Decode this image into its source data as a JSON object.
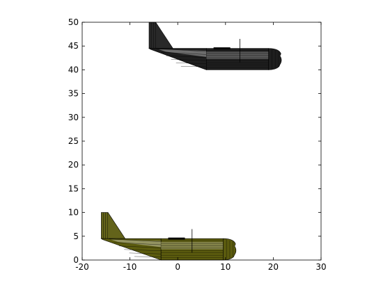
{
  "chart_data": {
    "type": "other",
    "title": "",
    "xlabel": "",
    "ylabel": "",
    "xlim": [
      -20,
      30
    ],
    "ylim": [
      0,
      50
    ],
    "x_ticks": [
      -20,
      -10,
      0,
      10,
      20,
      30
    ],
    "y_ticks": [
      0,
      5,
      10,
      15,
      20,
      25,
      30,
      35,
      40,
      45,
      50
    ],
    "grid": false,
    "legend": "none",
    "box": true,
    "objects": [
      {
        "kind": "aircraft-side-view",
        "color": "#1e1e1e",
        "tail_x": -6,
        "nose_x": 22,
        "fuselage_bottom_y": 40,
        "fuselage_top_y": 44.5,
        "fin_top_y": 50,
        "cylinder_start_x": 6,
        "cylinder_end_x": 19,
        "mast_x": 13
      },
      {
        "kind": "aircraft-side-view",
        "color": "#5b5b0e",
        "tail_x": -16,
        "nose_x": 12.5,
        "fuselage_bottom_y": 0,
        "fuselage_top_y": 4.5,
        "fin_top_y": 10,
        "cylinder_start_x": -3.5,
        "cylinder_end_x": 9.5,
        "mast_x": 3
      }
    ]
  }
}
